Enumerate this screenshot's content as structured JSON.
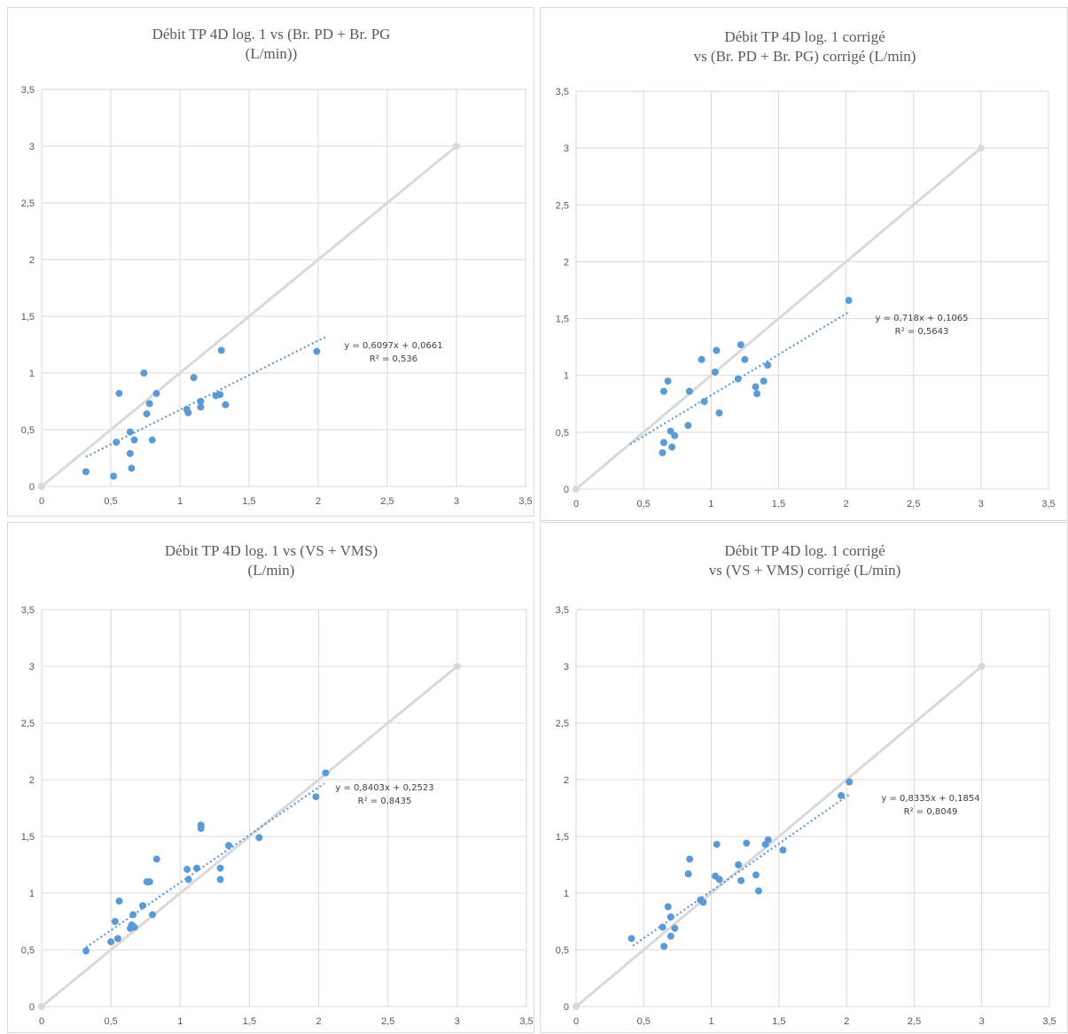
{
  "chart_data": [
    {
      "type": "scatter",
      "title_lines": [
        "Débit TP 4D log. 1 vs (Br. PD + Br. PG",
        "(L/min))"
      ],
      "xlim": [
        0,
        3.5
      ],
      "ylim": [
        0,
        3.5
      ],
      "xticks": [
        "0",
        "0,5",
        "1",
        "1,5",
        "2",
        "2,5",
        "3",
        "3,5"
      ],
      "yticks": [
        "0",
        "0,5",
        "1",
        "1,5",
        "2",
        "2,5",
        "3",
        "3,5"
      ],
      "grid": true,
      "identity_line": [
        [
          0,
          0
        ],
        [
          3,
          3
        ]
      ],
      "trendline": {
        "x": [
          0.32,
          2.06
        ],
        "equation": "y = 0,6097x + 0,0661",
        "r2": "R² = 0,536"
      },
      "points": [
        [
          0.32,
          0.13
        ],
        [
          0.52,
          0.09
        ],
        [
          0.54,
          0.39
        ],
        [
          0.56,
          0.82
        ],
        [
          0.64,
          0.48
        ],
        [
          0.64,
          0.29
        ],
        [
          0.65,
          0.16
        ],
        [
          0.67,
          0.41
        ],
        [
          0.74,
          1.0
        ],
        [
          0.76,
          0.64
        ],
        [
          0.78,
          0.73
        ],
        [
          0.8,
          0.41
        ],
        [
          0.83,
          0.82
        ],
        [
          1.05,
          0.68
        ],
        [
          1.06,
          0.65
        ],
        [
          1.1,
          0.96
        ],
        [
          1.15,
          0.75
        ],
        [
          1.15,
          0.7
        ],
        [
          1.26,
          0.8
        ],
        [
          1.29,
          0.81
        ],
        [
          1.3,
          1.2
        ],
        [
          1.33,
          0.72
        ],
        [
          1.99,
          1.19
        ]
      ],
      "colors": {
        "points": "#5b9bd5",
        "trend": "#5b9bd5",
        "identity": "#d9d9d9",
        "grid": "#d9d9d9"
      }
    },
    {
      "type": "scatter",
      "title_lines": [
        "Débit TP 4D log. 1 corrigé",
        "vs (Br. PD + Br. PG) corrigé (L/min)"
      ],
      "xlim": [
        0,
        3.5
      ],
      "ylim": [
        0,
        3.5
      ],
      "xticks": [
        "0",
        "0,5",
        "1",
        "1,5",
        "2",
        "2,5",
        "3",
        "3,5"
      ],
      "yticks": [
        "0",
        "0,5",
        "1",
        "1,5",
        "2",
        "2,5",
        "3",
        "3,5"
      ],
      "grid": true,
      "identity_line": [
        [
          0,
          0
        ],
        [
          3,
          3
        ]
      ],
      "trendline": {
        "x": [
          0.4,
          2.02
        ],
        "equation": "y = 0,718x + 0,1065",
        "r2": "R² = 0,5643"
      },
      "points": [
        [
          0.64,
          0.32
        ],
        [
          0.65,
          0.41
        ],
        [
          0.65,
          0.86
        ],
        [
          0.68,
          0.95
        ],
        [
          0.7,
          0.51
        ],
        [
          0.71,
          0.37
        ],
        [
          0.73,
          0.47
        ],
        [
          0.83,
          0.56
        ],
        [
          0.84,
          0.86
        ],
        [
          0.93,
          1.14
        ],
        [
          0.95,
          0.77
        ],
        [
          1.03,
          1.03
        ],
        [
          1.04,
          1.22
        ],
        [
          1.06,
          0.67
        ],
        [
          1.2,
          0.97
        ],
        [
          1.22,
          1.27
        ],
        [
          1.25,
          1.14
        ],
        [
          1.33,
          0.9
        ],
        [
          1.34,
          0.84
        ],
        [
          1.39,
          0.95
        ],
        [
          1.42,
          1.09
        ],
        [
          2.02,
          1.66
        ]
      ],
      "colors": {
        "points": "#5b9bd5",
        "trend": "#5b9bd5",
        "identity": "#d9d9d9",
        "grid": "#d9d9d9"
      }
    },
    {
      "type": "scatter",
      "title_lines": [
        "Débit TP 4D log. 1 vs (VS + VMS)",
        "(L/min)"
      ],
      "xlim": [
        0,
        3.5
      ],
      "ylim": [
        0,
        3.5
      ],
      "xticks": [
        "0",
        "0,5",
        "1",
        "1,5",
        "2",
        "2,5",
        "3",
        "3,5"
      ],
      "yticks": [
        "0",
        "0,5",
        "1",
        "1,5",
        "2",
        "2,5",
        "3",
        "3,5"
      ],
      "grid": true,
      "identity_line": [
        [
          0,
          0
        ],
        [
          3,
          3
        ]
      ],
      "trendline": {
        "x": [
          0.32,
          2.04
        ],
        "equation": "y = 0,8403x + 0,2523",
        "r2": "R² = 0,8435"
      },
      "points": [
        [
          0.32,
          0.49
        ],
        [
          0.5,
          0.57
        ],
        [
          0.53,
          0.75
        ],
        [
          0.55,
          0.6
        ],
        [
          0.56,
          0.93
        ],
        [
          0.64,
          0.69
        ],
        [
          0.65,
          0.72
        ],
        [
          0.66,
          0.81
        ],
        [
          0.67,
          0.7
        ],
        [
          0.73,
          0.89
        ],
        [
          0.76,
          1.1
        ],
        [
          0.78,
          1.1
        ],
        [
          0.8,
          0.81
        ],
        [
          0.83,
          1.3
        ],
        [
          1.05,
          1.21
        ],
        [
          1.06,
          1.12
        ],
        [
          1.12,
          1.22
        ],
        [
          1.15,
          1.6
        ],
        [
          1.15,
          1.57
        ],
        [
          1.29,
          1.22
        ],
        [
          1.29,
          1.12
        ],
        [
          1.35,
          1.42
        ],
        [
          1.57,
          1.49
        ],
        [
          1.98,
          1.85
        ],
        [
          2.05,
          2.06
        ]
      ],
      "colors": {
        "points": "#5b9bd5",
        "trend": "#5b9bd5",
        "identity": "#d9d9d9",
        "grid": "#d9d9d9"
      }
    },
    {
      "type": "scatter",
      "title_lines": [
        "Débit TP 4D log. 1 corrigé",
        "vs (VS + VMS) corrigé (L/min)"
      ],
      "xlim": [
        0,
        3.5
      ],
      "ylim": [
        0,
        3.5
      ],
      "xticks": [
        "0",
        "0,5",
        "1",
        "1,5",
        "2",
        "2,5",
        "3",
        "3,5"
      ],
      "yticks": [
        "0",
        "0,5",
        "1",
        "1,5",
        "2",
        "2,5",
        "3",
        "3,5"
      ],
      "grid": true,
      "identity_line": [
        [
          0,
          0
        ],
        [
          3,
          3
        ]
      ],
      "trendline": {
        "x": [
          0.42,
          2.02
        ],
        "equation": "y = 0,8335x + 0,1854",
        "r2": "R² = 0,8049"
      },
      "points": [
        [
          0.41,
          0.6
        ],
        [
          0.64,
          0.7
        ],
        [
          0.65,
          0.53
        ],
        [
          0.68,
          0.88
        ],
        [
          0.7,
          0.79
        ],
        [
          0.7,
          0.62
        ],
        [
          0.73,
          0.69
        ],
        [
          0.83,
          1.17
        ],
        [
          0.84,
          1.3
        ],
        [
          0.92,
          0.94
        ],
        [
          0.94,
          0.92
        ],
        [
          1.03,
          1.15
        ],
        [
          1.04,
          1.43
        ],
        [
          1.06,
          1.12
        ],
        [
          1.2,
          1.25
        ],
        [
          1.22,
          1.11
        ],
        [
          1.26,
          1.44
        ],
        [
          1.33,
          1.16
        ],
        [
          1.35,
          1.02
        ],
        [
          1.4,
          1.43
        ],
        [
          1.42,
          1.47
        ],
        [
          1.53,
          1.38
        ],
        [
          1.96,
          1.86
        ],
        [
          2.02,
          1.98
        ]
      ],
      "colors": {
        "points": "#5b9bd5",
        "trend": "#5b9bd5",
        "identity": "#d9d9d9",
        "grid": "#d9d9d9"
      }
    }
  ]
}
